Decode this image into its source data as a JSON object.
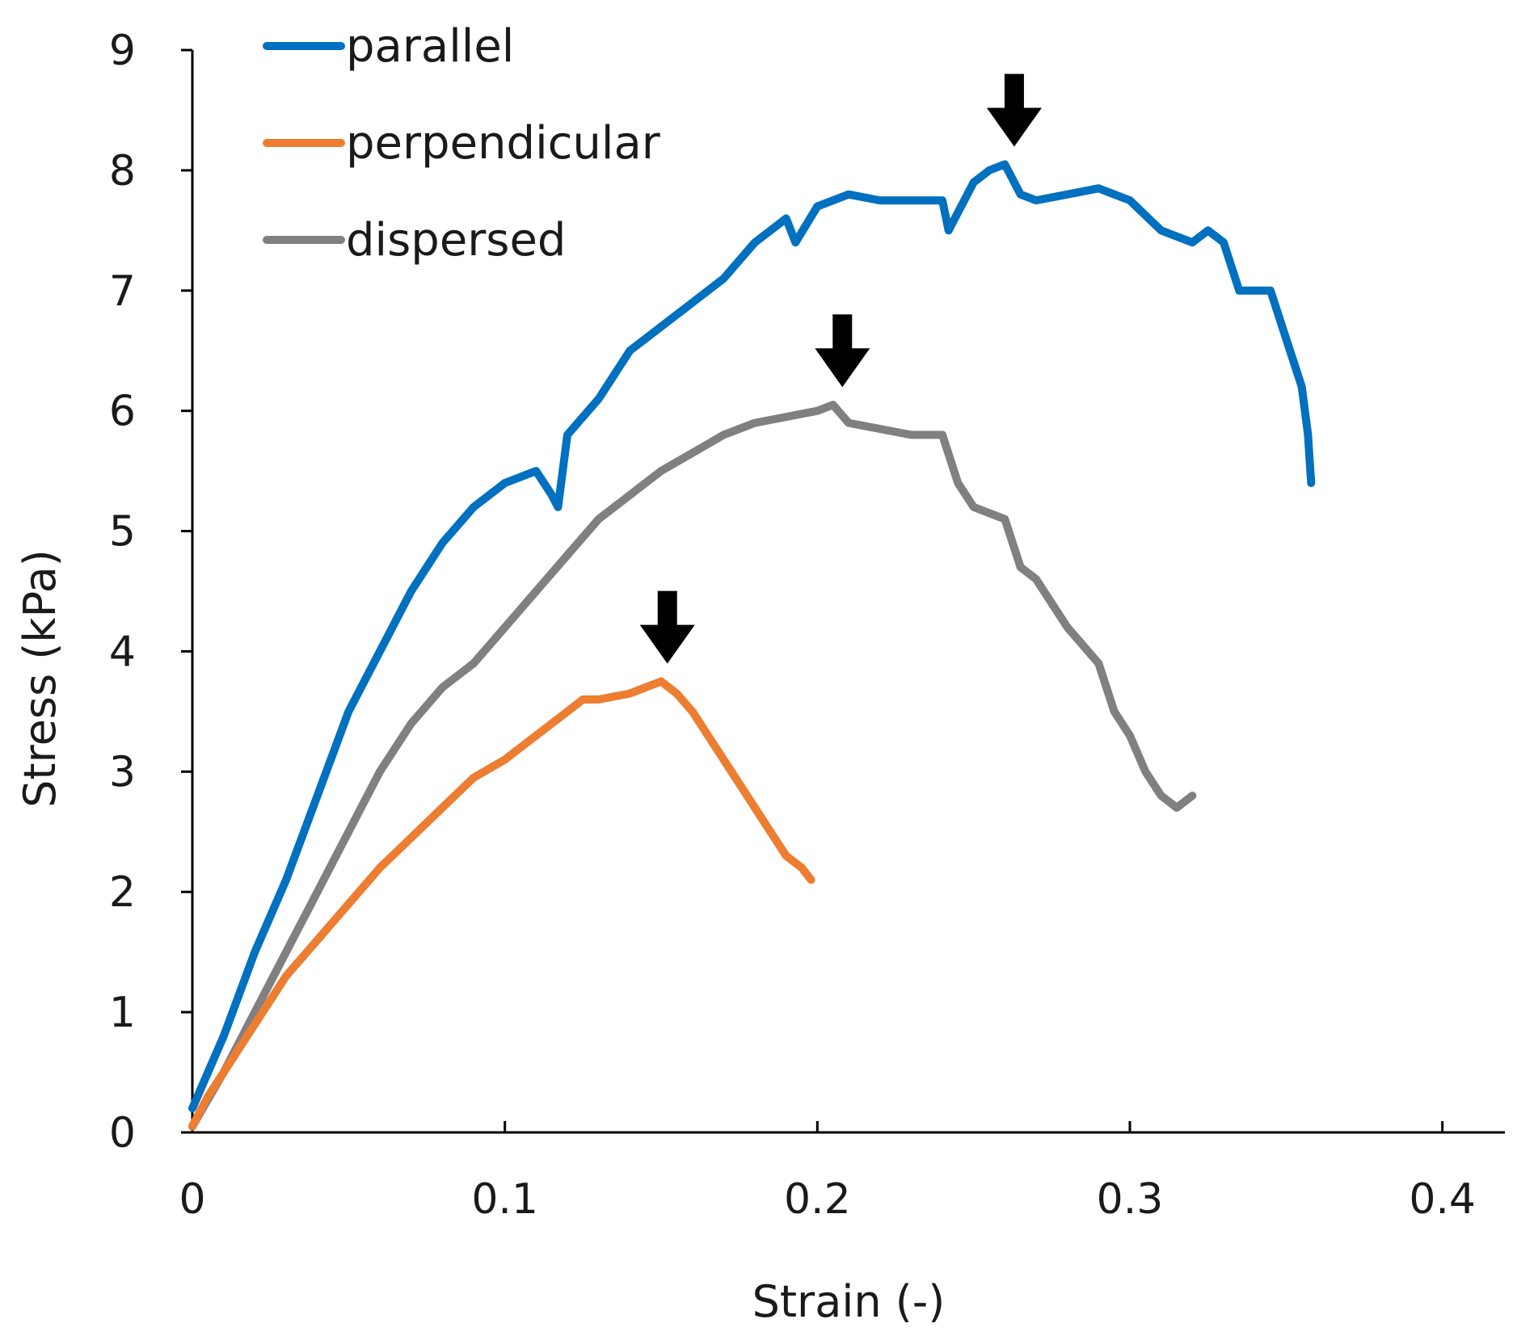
{
  "chart_data": {
    "type": "line",
    "title": "",
    "xlabel": "Strain (-)",
    "ylabel": "Stress (kPa)",
    "xlim": [
      0,
      0.42
    ],
    "ylim": [
      0,
      9
    ],
    "xticks": [
      0,
      0.1,
      0.2,
      0.3,
      0.4
    ],
    "xtick_labels": [
      "0",
      "0.1",
      "0.2",
      "0.3",
      "0.4"
    ],
    "yticks": [
      0,
      1,
      2,
      3,
      4,
      5,
      6,
      7,
      8,
      9
    ],
    "ytick_labels": [
      "0",
      "1",
      "2",
      "3",
      "4",
      "5",
      "6",
      "7",
      "8",
      "9"
    ],
    "grid": false,
    "legend_position": "top-left",
    "series": [
      {
        "name": "parallel",
        "color": "#0070C0",
        "x": [
          0,
          0.005,
          0.01,
          0.02,
          0.03,
          0.04,
          0.05,
          0.06,
          0.07,
          0.08,
          0.09,
          0.1,
          0.11,
          0.115,
          0.117,
          0.12,
          0.13,
          0.14,
          0.15,
          0.16,
          0.17,
          0.18,
          0.19,
          0.193,
          0.2,
          0.21,
          0.22,
          0.23,
          0.24,
          0.242,
          0.25,
          0.255,
          0.26,
          0.265,
          0.27,
          0.28,
          0.29,
          0.3,
          0.31,
          0.32,
          0.325,
          0.33,
          0.335,
          0.34,
          0.345,
          0.35,
          0.355,
          0.357,
          0.358
        ],
        "y": [
          0.2,
          0.5,
          0.8,
          1.5,
          2.1,
          2.8,
          3.5,
          4.0,
          4.5,
          4.9,
          5.2,
          5.4,
          5.5,
          5.3,
          5.2,
          5.8,
          6.1,
          6.5,
          6.7,
          6.9,
          7.1,
          7.4,
          7.6,
          7.4,
          7.7,
          7.8,
          7.75,
          7.75,
          7.75,
          7.5,
          7.9,
          8.0,
          8.05,
          7.8,
          7.75,
          7.8,
          7.85,
          7.75,
          7.5,
          7.4,
          7.5,
          7.4,
          7.0,
          7.0,
          7.0,
          6.6,
          6.2,
          5.8,
          5.4
        ]
      },
      {
        "name": "perpendicular",
        "color": "#ED7D31",
        "x": [
          0,
          0.005,
          0.01,
          0.02,
          0.03,
          0.04,
          0.05,
          0.06,
          0.07,
          0.08,
          0.09,
          0.1,
          0.11,
          0.12,
          0.125,
          0.13,
          0.14,
          0.145,
          0.15,
          0.155,
          0.16,
          0.165,
          0.17,
          0.175,
          0.18,
          0.185,
          0.19,
          0.195,
          0.198
        ],
        "y": [
          0.05,
          0.3,
          0.5,
          0.9,
          1.3,
          1.6,
          1.9,
          2.2,
          2.45,
          2.7,
          2.95,
          3.1,
          3.3,
          3.5,
          3.6,
          3.6,
          3.65,
          3.7,
          3.75,
          3.65,
          3.5,
          3.3,
          3.1,
          2.9,
          2.7,
          2.5,
          2.3,
          2.2,
          2.1
        ]
      },
      {
        "name": "dispersed",
        "color": "#808080",
        "x": [
          0,
          0.01,
          0.02,
          0.03,
          0.04,
          0.05,
          0.06,
          0.07,
          0.08,
          0.09,
          0.1,
          0.11,
          0.12,
          0.13,
          0.14,
          0.15,
          0.16,
          0.17,
          0.18,
          0.19,
          0.2,
          0.205,
          0.21,
          0.22,
          0.23,
          0.24,
          0.245,
          0.25,
          0.26,
          0.265,
          0.27,
          0.28,
          0.29,
          0.295,
          0.3,
          0.305,
          0.31,
          0.315,
          0.32
        ],
        "y": [
          0.05,
          0.5,
          1.0,
          1.5,
          2.0,
          2.5,
          3.0,
          3.4,
          3.7,
          3.9,
          4.2,
          4.5,
          4.8,
          5.1,
          5.3,
          5.5,
          5.65,
          5.8,
          5.9,
          5.95,
          6.0,
          6.05,
          5.9,
          5.85,
          5.8,
          5.8,
          5.4,
          5.2,
          5.1,
          4.7,
          4.6,
          4.2,
          3.9,
          3.5,
          3.3,
          3.0,
          2.8,
          2.7,
          2.8
        ]
      }
    ],
    "annotations": [
      {
        "type": "down-arrow",
        "series": "parallel",
        "x": 0.263,
        "y": 8.05
      },
      {
        "type": "down-arrow",
        "series": "dispersed",
        "x": 0.208,
        "y": 6.05
      },
      {
        "type": "down-arrow",
        "series": "perpendicular",
        "x": 0.152,
        "y": 3.75
      }
    ]
  }
}
